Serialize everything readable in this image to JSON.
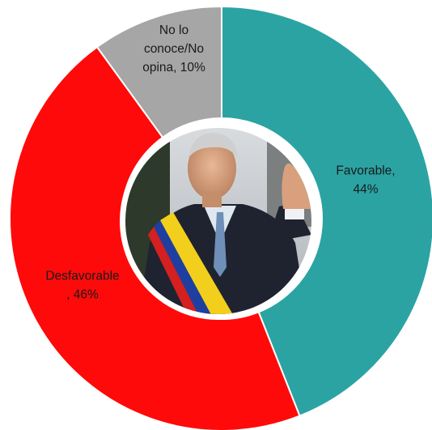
{
  "chart_data": {
    "type": "pie",
    "variant": "donut",
    "categories": [
      "Favorable",
      "Desfavorable",
      "No lo conoce/No opina"
    ],
    "values": [
      44,
      46,
      10
    ],
    "unit": "%",
    "colors": [
      "#2BA3A3",
      "#FF0A0A",
      "#A6A6A6"
    ],
    "slice_labels": [
      [
        "Favorable,",
        "44%"
      ],
      [
        "Desfavorable",
        ", 46%"
      ],
      [
        "No lo",
        "conoce/No",
        "opina, 10%"
      ]
    ],
    "center_image": "portrait photo of a man in a dark suit wearing a yellow, blue and red presidential sash, waving",
    "legend": "none"
  }
}
